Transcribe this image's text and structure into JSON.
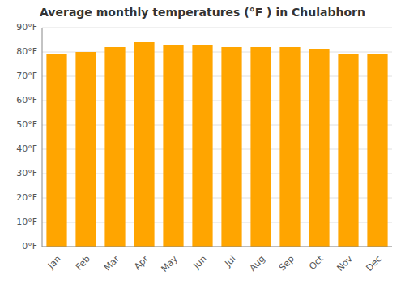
{
  "chart_data": {
    "type": "bar",
    "title": "Average monthly temperatures (°F ) in Chulabhorn",
    "categories": [
      "Jan",
      "Feb",
      "Mar",
      "Apr",
      "May",
      "Jun",
      "Jul",
      "Aug",
      "Sep",
      "Oct",
      "Nov",
      "Dec"
    ],
    "values": [
      79,
      80,
      82,
      84,
      83,
      83,
      82,
      82,
      82,
      81,
      79,
      79
    ],
    "color": "#FFA500",
    "ylim": [
      0,
      90
    ],
    "yticks": [
      {
        "value": 0,
        "label": "0°F"
      },
      {
        "value": 10,
        "label": "10°F"
      },
      {
        "value": 20,
        "label": "20°F"
      },
      {
        "value": 30,
        "label": "30°F"
      },
      {
        "value": 40,
        "label": "40°F"
      },
      {
        "value": 50,
        "label": "50°F"
      },
      {
        "value": 60,
        "label": "60°F"
      },
      {
        "value": 70,
        "label": "70°F"
      },
      {
        "value": 80,
        "label": "80°F"
      },
      {
        "value": 90,
        "label": "90°F"
      }
    ],
    "grid": true
  }
}
